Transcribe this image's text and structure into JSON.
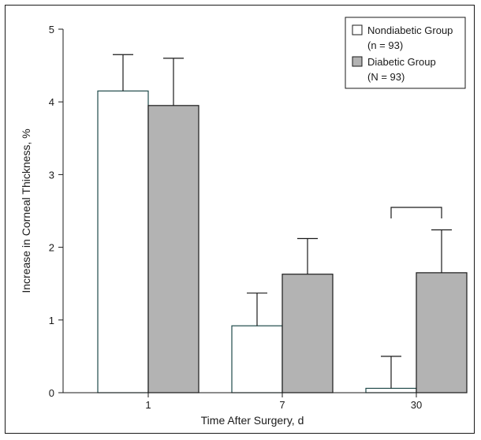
{
  "chart_data": {
    "type": "bar",
    "xlabel": "Time After Surgery, d",
    "ylabel": "Increase in Corneal Thickness, %",
    "ylim": [
      0,
      5
    ],
    "yticks": [
      "0",
      "1",
      "2",
      "3",
      "4",
      "5"
    ],
    "categories": [
      "1",
      "7",
      "30"
    ],
    "grid": false,
    "legend_placement": "top-right",
    "series": [
      {
        "name": "Nondiabetic Group",
        "name_line2": "(n = 93)",
        "values": [
          4.15,
          0.92,
          0.06
        ],
        "errors": [
          0.5,
          0.45,
          0.44
        ],
        "fill": "#ffffff",
        "stroke": "#1f4a4a"
      },
      {
        "name": "Diabetic Group",
        "name_line2": "(N = 93)",
        "values": [
          3.95,
          1.63,
          1.65
        ],
        "errors": [
          0.65,
          0.49,
          0.59
        ],
        "fill": "#b3b3b3",
        "stroke": "#1a1a1a"
      }
    ],
    "annotations": [
      {
        "type": "significance-bracket",
        "category": "30"
      }
    ]
  }
}
